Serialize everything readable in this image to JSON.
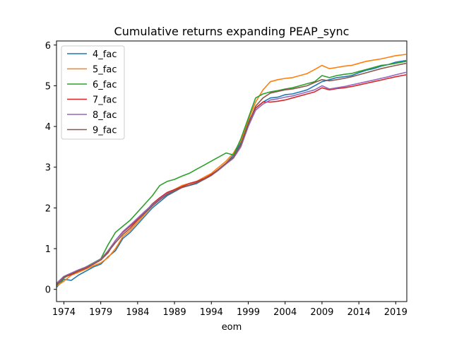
{
  "chart_data": {
    "type": "line",
    "title": "Cumulative returns expanding PEAP_sync",
    "xlabel": "eom",
    "ylabel": "",
    "xlim": [
      1973.0,
      2020.5
    ],
    "ylim": [
      -0.3,
      6.1
    ],
    "xticks": [
      1974,
      1979,
      1984,
      1989,
      1994,
      1999,
      2004,
      2009,
      2014,
      2019
    ],
    "yticks": [
      0,
      1,
      2,
      3,
      4,
      5,
      6
    ],
    "grid": false,
    "legend_position": "top-left",
    "series": [
      {
        "name": "4_fac",
        "color": "#1f77b4",
        "x": [
          1973.0,
          1974.0,
          1975.0,
          1976.0,
          1977.0,
          1978.0,
          1979.0,
          1980.0,
          1981.0,
          1982.0,
          1983.0,
          1984.0,
          1985.0,
          1986.0,
          1987.0,
          1988.0,
          1989.0,
          1990.0,
          1991.0,
          1992.0,
          1993.0,
          1994.0,
          1995.0,
          1996.0,
          1997.0,
          1998.0,
          1999.0,
          2000.0,
          2001.0,
          2002.0,
          2003.0,
          2004.0,
          2005.0,
          2006.0,
          2007.0,
          2008.0,
          2009.0,
          2010.0,
          2011.0,
          2012.0,
          2013.0,
          2014.0,
          2015.0,
          2016.0,
          2017.0,
          2018.0,
          2019.0,
          2020.4
        ],
        "y": [
          0.05,
          0.25,
          0.22,
          0.35,
          0.45,
          0.55,
          0.62,
          0.8,
          0.95,
          1.25,
          1.4,
          1.6,
          1.8,
          2.0,
          2.15,
          2.3,
          2.4,
          2.5,
          2.55,
          2.6,
          2.7,
          2.8,
          2.95,
          3.1,
          3.3,
          3.6,
          4.1,
          4.45,
          4.6,
          4.7,
          4.72,
          4.78,
          4.8,
          4.85,
          4.9,
          5.0,
          5.1,
          5.15,
          5.2,
          5.22,
          5.25,
          5.32,
          5.38,
          5.42,
          5.48,
          5.52,
          5.58,
          5.62
        ]
      },
      {
        "name": "5_fac",
        "color": "#ff7f0e",
        "x": [
          1973.0,
          1974.0,
          1975.0,
          1976.0,
          1977.0,
          1978.0,
          1979.0,
          1980.0,
          1981.0,
          1982.0,
          1983.0,
          1984.0,
          1985.0,
          1986.0,
          1987.0,
          1988.0,
          1989.0,
          1990.0,
          1991.0,
          1992.0,
          1993.0,
          1994.0,
          1995.0,
          1996.0,
          1997.0,
          1998.0,
          1999.0,
          2000.0,
          2001.0,
          2002.0,
          2003.0,
          2004.0,
          2005.0,
          2006.0,
          2007.0,
          2008.0,
          2009.0,
          2010.0,
          2011.0,
          2012.0,
          2013.0,
          2014.0,
          2015.0,
          2016.0,
          2017.0,
          2018.0,
          2019.0,
          2020.4
        ],
        "y": [
          0.08,
          0.2,
          0.35,
          0.42,
          0.5,
          0.58,
          0.65,
          0.78,
          1.0,
          1.3,
          1.45,
          1.65,
          1.85,
          2.05,
          2.2,
          2.35,
          2.45,
          2.55,
          2.6,
          2.65,
          2.75,
          2.85,
          3.0,
          3.15,
          3.35,
          3.65,
          4.15,
          4.6,
          4.9,
          5.1,
          5.15,
          5.18,
          5.2,
          5.25,
          5.3,
          5.4,
          5.5,
          5.42,
          5.45,
          5.48,
          5.5,
          5.55,
          5.6,
          5.63,
          5.66,
          5.7,
          5.74,
          5.77
        ]
      },
      {
        "name": "6_fac",
        "color": "#2ca02c",
        "x": [
          1973.0,
          1974.0,
          1975.0,
          1976.0,
          1977.0,
          1978.0,
          1979.0,
          1980.0,
          1981.0,
          1982.0,
          1983.0,
          1984.0,
          1985.0,
          1986.0,
          1987.0,
          1988.0,
          1989.0,
          1990.0,
          1991.0,
          1992.0,
          1993.0,
          1994.0,
          1995.0,
          1996.0,
          1997.0,
          1998.0,
          1999.0,
          2000.0,
          2001.0,
          2002.0,
          2003.0,
          2004.0,
          2005.0,
          2006.0,
          2007.0,
          2008.0,
          2009.0,
          2010.0,
          2011.0,
          2012.0,
          2013.0,
          2014.0,
          2015.0,
          2016.0,
          2017.0,
          2018.0,
          2019.0,
          2020.4
        ],
        "y": [
          0.1,
          0.28,
          0.38,
          0.45,
          0.55,
          0.65,
          0.75,
          1.1,
          1.4,
          1.55,
          1.7,
          1.9,
          2.1,
          2.3,
          2.55,
          2.65,
          2.7,
          2.78,
          2.85,
          2.95,
          3.05,
          3.15,
          3.25,
          3.35,
          3.3,
          3.7,
          4.2,
          4.7,
          4.8,
          4.85,
          4.88,
          4.92,
          4.95,
          5.0,
          5.05,
          5.1,
          5.25,
          5.2,
          5.25,
          5.28,
          5.3,
          5.35,
          5.4,
          5.45,
          5.5,
          5.52,
          5.55,
          5.6
        ]
      },
      {
        "name": "7_fac",
        "color": "#d62728",
        "x": [
          1973.0,
          1974.0,
          1975.0,
          1976.0,
          1977.0,
          1978.0,
          1979.0,
          1980.0,
          1981.0,
          1982.0,
          1983.0,
          1984.0,
          1985.0,
          1986.0,
          1987.0,
          1988.0,
          1989.0,
          1990.0,
          1991.0,
          1992.0,
          1993.0,
          1994.0,
          1995.0,
          1996.0,
          1997.0,
          1998.0,
          1999.0,
          2000.0,
          2001.0,
          2002.0,
          2003.0,
          2004.0,
          2005.0,
          2006.0,
          2007.0,
          2008.0,
          2009.0,
          2010.0,
          2011.0,
          2012.0,
          2013.0,
          2014.0,
          2015.0,
          2016.0,
          2017.0,
          2018.0,
          2019.0,
          2020.4
        ],
        "y": [
          0.12,
          0.3,
          0.36,
          0.45,
          0.52,
          0.62,
          0.72,
          0.9,
          1.2,
          1.4,
          1.55,
          1.72,
          1.9,
          2.1,
          2.25,
          2.38,
          2.45,
          2.52,
          2.6,
          2.65,
          2.72,
          2.82,
          2.95,
          3.1,
          3.25,
          3.55,
          4.05,
          4.45,
          4.6,
          4.6,
          4.62,
          4.65,
          4.7,
          4.75,
          4.8,
          4.85,
          4.95,
          4.9,
          4.93,
          4.95,
          4.98,
          5.02,
          5.06,
          5.1,
          5.14,
          5.18,
          5.22,
          5.27
        ]
      },
      {
        "name": "8_fac",
        "color": "#9467bd",
        "x": [
          1973.0,
          1974.0,
          1975.0,
          1976.0,
          1977.0,
          1978.0,
          1979.0,
          1980.0,
          1981.0,
          1982.0,
          1983.0,
          1984.0,
          1985.0,
          1986.0,
          1987.0,
          1988.0,
          1989.0,
          1990.0,
          1991.0,
          1992.0,
          1993.0,
          1994.0,
          1995.0,
          1996.0,
          1997.0,
          1998.0,
          1999.0,
          2000.0,
          2001.0,
          2002.0,
          2003.0,
          2004.0,
          2005.0,
          2006.0,
          2007.0,
          2008.0,
          2009.0,
          2010.0,
          2011.0,
          2012.0,
          2013.0,
          2014.0,
          2015.0,
          2016.0,
          2017.0,
          2018.0,
          2019.0,
          2020.4
        ],
        "y": [
          0.15,
          0.32,
          0.4,
          0.48,
          0.55,
          0.64,
          0.74,
          0.95,
          1.2,
          1.42,
          1.58,
          1.75,
          1.92,
          2.08,
          2.22,
          2.35,
          2.42,
          2.5,
          2.56,
          2.62,
          2.7,
          2.8,
          2.93,
          3.08,
          3.22,
          3.5,
          4.0,
          4.4,
          4.55,
          4.65,
          4.68,
          4.72,
          4.75,
          4.8,
          4.85,
          4.9,
          5.0,
          4.92,
          4.95,
          4.98,
          5.02,
          5.06,
          5.1,
          5.14,
          5.18,
          5.22,
          5.27,
          5.33
        ]
      },
      {
        "name": "9_fac",
        "color": "#8c564b",
        "x": [
          1973.0,
          1974.0,
          1975.0,
          1976.0,
          1977.0,
          1978.0,
          1979.0,
          1980.0,
          1981.0,
          1982.0,
          1983.0,
          1984.0,
          1985.0,
          1986.0,
          1987.0,
          1988.0,
          1989.0,
          1990.0,
          1991.0,
          1992.0,
          1993.0,
          1994.0,
          1995.0,
          1996.0,
          1997.0,
          1998.0,
          1999.0,
          2000.0,
          2001.0,
          2002.0,
          2003.0,
          2004.0,
          2005.0,
          2006.0,
          2007.0,
          2008.0,
          2009.0,
          2010.0,
          2011.0,
          2012.0,
          2013.0,
          2014.0,
          2015.0,
          2016.0,
          2017.0,
          2018.0,
          2019.0,
          2020.4
        ],
        "y": [
          0.1,
          0.3,
          0.38,
          0.46,
          0.53,
          0.62,
          0.72,
          0.92,
          1.15,
          1.35,
          1.5,
          1.7,
          1.88,
          2.05,
          2.2,
          2.33,
          2.42,
          2.5,
          2.56,
          2.62,
          2.7,
          2.8,
          2.95,
          3.1,
          3.25,
          3.55,
          4.05,
          4.5,
          4.7,
          4.82,
          4.86,
          4.9,
          4.92,
          4.96,
          5.0,
          5.08,
          5.15,
          5.12,
          5.15,
          5.18,
          5.22,
          5.27,
          5.32,
          5.37,
          5.42,
          5.46,
          5.5,
          5.55
        ]
      }
    ]
  }
}
